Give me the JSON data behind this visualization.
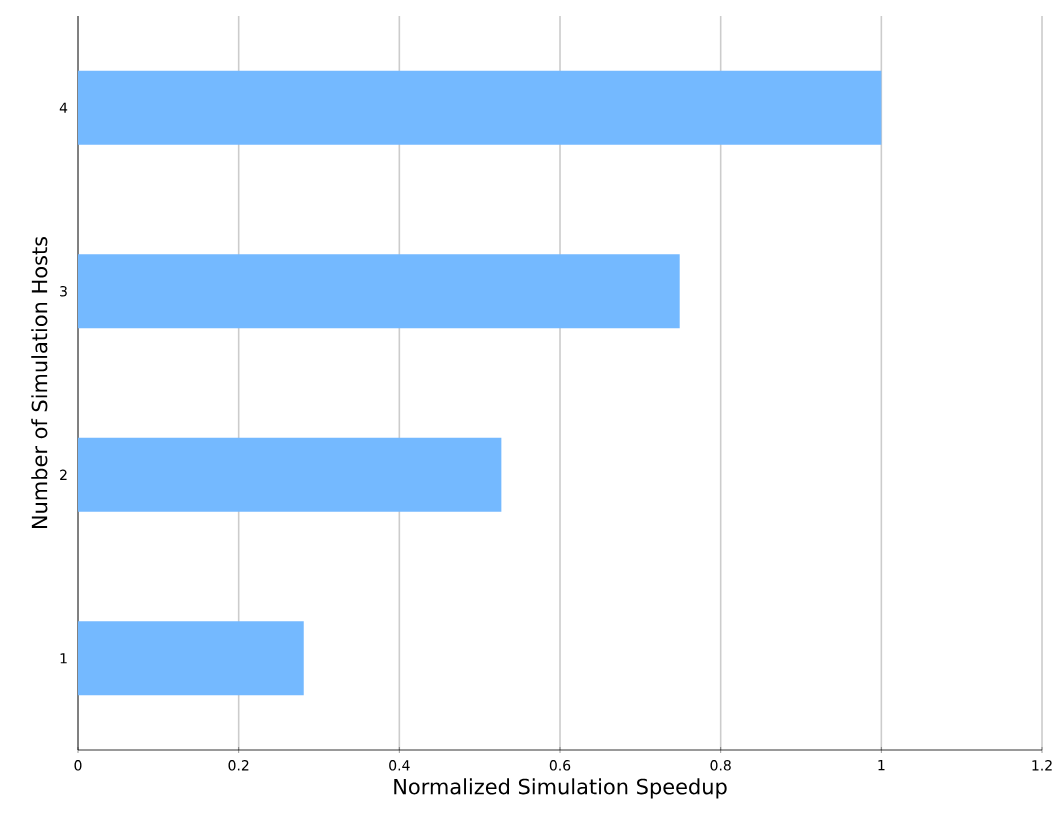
{
  "chart_data": {
    "type": "bar",
    "orientation": "horizontal",
    "xlabel": "Normalized Simulation Speedup",
    "ylabel": "Number of Simulation Hosts",
    "categories": [
      "4",
      "3",
      "2",
      "1"
    ],
    "values": [
      1.0,
      0.749,
      0.527,
      0.281
    ],
    "color": "#74b9ff",
    "xlim": [
      0,
      1.2
    ],
    "xticks": [
      0,
      0.2,
      0.4,
      0.6,
      0.8,
      1,
      1.2
    ],
    "grid": "x"
  }
}
